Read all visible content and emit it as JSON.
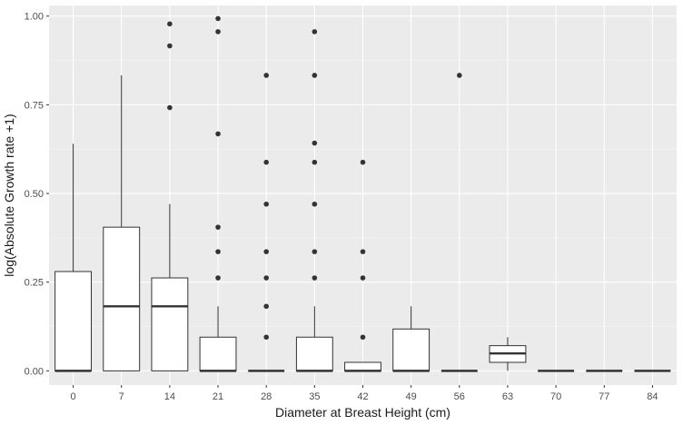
{
  "chart_data": {
    "type": "box",
    "title": "",
    "xlabel": "Diameter at Breast Height (cm)",
    "ylabel": "log(Absolute Growth rate +1)",
    "ylim": [
      -0.04,
      1.03
    ],
    "y_ticks": [
      0.0,
      0.25,
      0.5,
      0.75,
      1.0
    ],
    "y_tick_labels": [
      "0.00",
      "0.25",
      "0.50",
      "0.75",
      "1.00"
    ],
    "categories": [
      "0",
      "7",
      "14",
      "21",
      "28",
      "35",
      "42",
      "49",
      "56",
      "63",
      "70",
      "77",
      "84"
    ],
    "grid": true,
    "legend": "none",
    "colors": {
      "panel_background": "#ebebeb",
      "major_grid": "#ffffff",
      "minor_grid": "#f5f5f5",
      "box_fill": "#ffffff",
      "box_line": "#333333",
      "outlier": "#333333",
      "tick_text": "#4d4d4d",
      "axis_title": "#1a1a1a"
    },
    "boxes": [
      {
        "category": "0",
        "lower_whisker": 0,
        "q1": 0,
        "median": 0,
        "q3": 0.28,
        "upper_whisker": 0.64,
        "outliers": []
      },
      {
        "category": "7",
        "lower_whisker": 0,
        "q1": 0,
        "median": 0.182,
        "q3": 0.405,
        "upper_whisker": 0.833,
        "outliers": []
      },
      {
        "category": "14",
        "lower_whisker": 0,
        "q1": 0,
        "median": 0.182,
        "q3": 0.262,
        "upper_whisker": 0.47,
        "outliers": [
          0.742,
          0.916,
          0.978
        ]
      },
      {
        "category": "21",
        "lower_whisker": 0,
        "q1": 0,
        "median": 0,
        "q3": 0.095,
        "upper_whisker": 0.182,
        "outliers": [
          0.262,
          0.336,
          0.405,
          0.668,
          0.956,
          0.993
        ]
      },
      {
        "category": "28",
        "lower_whisker": 0,
        "q1": 0,
        "median": 0,
        "q3": 0,
        "upper_whisker": 0,
        "outliers": [
          0.095,
          0.182,
          0.262,
          0.336,
          0.47,
          0.588,
          0.833
        ]
      },
      {
        "category": "35",
        "lower_whisker": 0,
        "q1": 0,
        "median": 0,
        "q3": 0.095,
        "upper_whisker": 0.182,
        "outliers": [
          0.262,
          0.336,
          0.47,
          0.588,
          0.642,
          0.833,
          0.956
        ]
      },
      {
        "category": "42",
        "lower_whisker": 0,
        "q1": 0,
        "median": 0,
        "q3": 0.024,
        "upper_whisker": 0.024,
        "outliers": [
          0.095,
          0.262,
          0.336,
          0.588
        ]
      },
      {
        "category": "49",
        "lower_whisker": 0,
        "q1": 0,
        "median": 0,
        "q3": 0.118,
        "upper_whisker": 0.182,
        "outliers": []
      },
      {
        "category": "56",
        "lower_whisker": 0,
        "q1": 0,
        "median": 0,
        "q3": 0,
        "upper_whisker": 0,
        "outliers": [
          0.833
        ]
      },
      {
        "category": "63",
        "lower_whisker": 0,
        "q1": 0.024,
        "median": 0.049,
        "q3": 0.071,
        "upper_whisker": 0.095,
        "outliers": []
      },
      {
        "category": "70",
        "lower_whisker": 0,
        "q1": 0,
        "median": 0,
        "q3": 0,
        "upper_whisker": 0,
        "outliers": []
      },
      {
        "category": "77",
        "lower_whisker": 0,
        "q1": 0,
        "median": 0,
        "q3": 0,
        "upper_whisker": 0,
        "outliers": []
      },
      {
        "category": "84",
        "lower_whisker": 0,
        "q1": 0,
        "median": 0,
        "q3": 0,
        "upper_whisker": 0,
        "outliers": []
      }
    ]
  }
}
